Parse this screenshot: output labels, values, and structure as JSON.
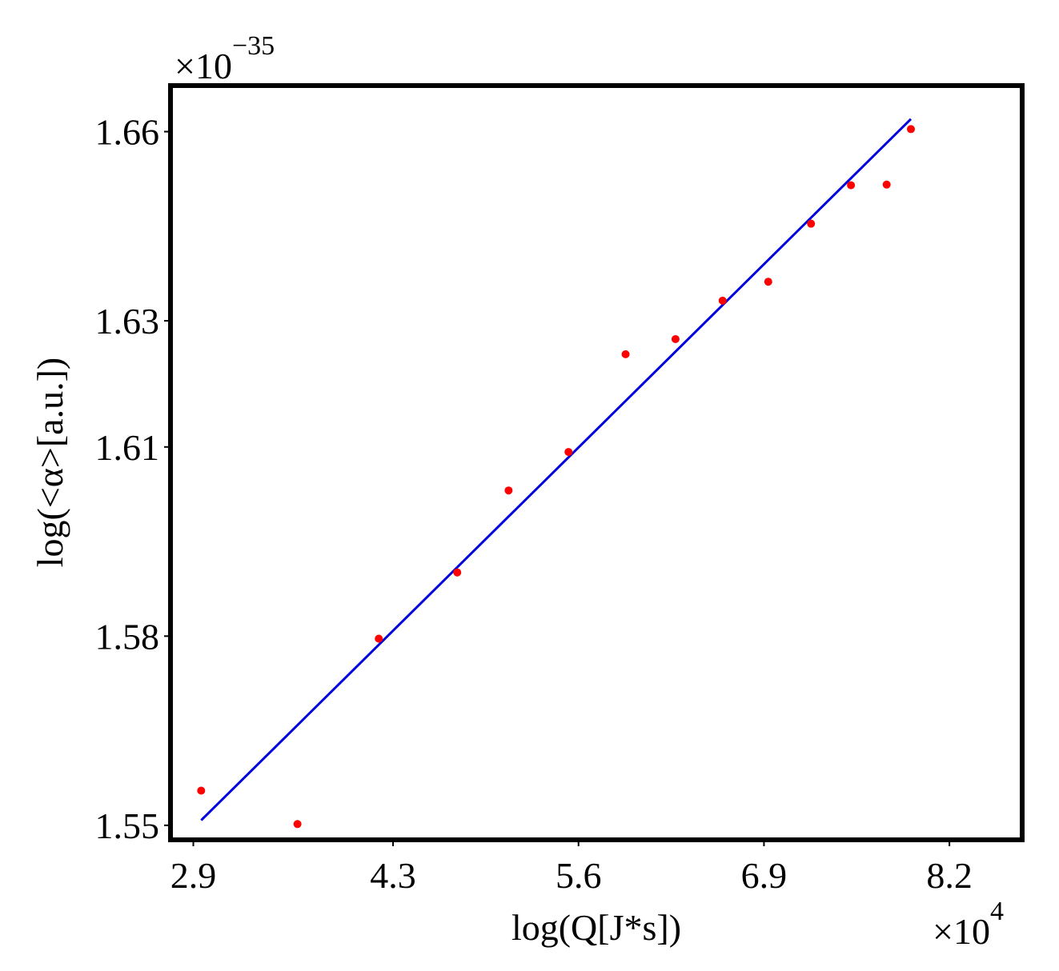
{
  "chart_data": {
    "type": "scatter",
    "title": "",
    "xlabel": "log(Q[J*s])",
    "ylabel": "log(<α>[a.u.])",
    "x_multiplier": {
      "base": "×10",
      "exponent": "4"
    },
    "y_multiplier": {
      "base": "×10",
      "exponent": "−35"
    },
    "xlim": [
      2.74,
      8.71
    ],
    "ylim": [
      1.5477,
      1.6673
    ],
    "x_ticks": [
      {
        "value": 2.9,
        "label": "2.9"
      },
      {
        "value": 4.3,
        "label": "4.3"
      },
      {
        "value": 5.6,
        "label": "5.6"
      },
      {
        "value": 6.9,
        "label": "6.9"
      },
      {
        "value": 8.2,
        "label": "8.2"
      }
    ],
    "y_ticks": [
      {
        "value": 1.55,
        "label": "1.55"
      },
      {
        "value": 1.58,
        "label": "1.58"
      },
      {
        "value": 1.61,
        "label": "1.61"
      },
      {
        "value": 1.63,
        "label": "1.63"
      },
      {
        "value": 1.66,
        "label": "1.66"
      }
    ],
    "grid": false,
    "series": [
      {
        "kind": "points",
        "color": "#ff0000",
        "points": [
          {
            "x": 2.955,
            "y": 1.5555
          },
          {
            "x": 3.63,
            "y": 1.5502
          },
          {
            "x": 4.2,
            "y": 1.5796
          },
          {
            "x": 4.75,
            "y": 1.5901
          },
          {
            "x": 5.11,
            "y": 1.6031
          },
          {
            "x": 5.53,
            "y": 1.6092
          },
          {
            "x": 5.93,
            "y": 1.6247
          },
          {
            "x": 6.28,
            "y": 1.6271
          },
          {
            "x": 6.61,
            "y": 1.6332
          },
          {
            "x": 6.93,
            "y": 1.6362
          },
          {
            "x": 7.23,
            "y": 1.6454
          },
          {
            "x": 7.51,
            "y": 1.6515
          },
          {
            "x": 7.76,
            "y": 1.6516
          },
          {
            "x": 7.93,
            "y": 1.6604
          }
        ]
      },
      {
        "kind": "fit-line",
        "color": "#0000dd",
        "points": [
          {
            "x": 2.955,
            "y": 1.5508
          },
          {
            "x": 7.93,
            "y": 1.662
          }
        ]
      }
    ]
  }
}
